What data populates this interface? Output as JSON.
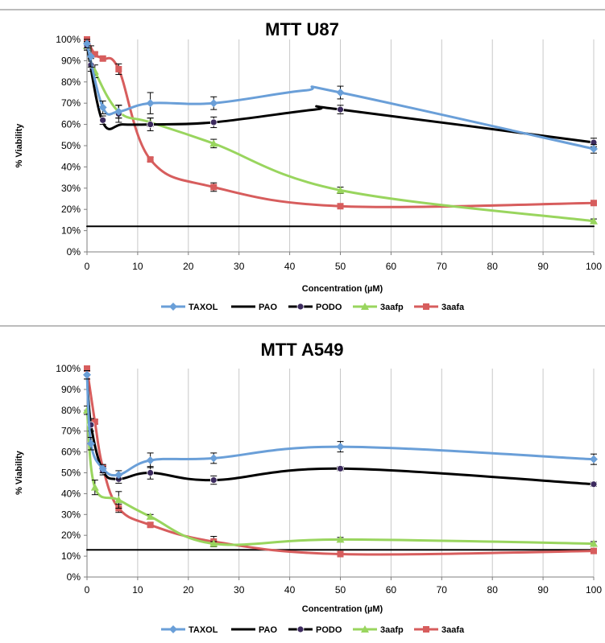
{
  "colors": {
    "taxol": "#6a9fd8",
    "pao": "#000000",
    "podo": "#000000",
    "podo_marker": "#3c2a5e",
    "aafp": "#99d55e",
    "aafa": "#d75d5d",
    "grid": "#c8c8c8",
    "axis": "#7f7f7f",
    "divider": "#a6a6a6"
  },
  "chart_data": [
    {
      "type": "line",
      "title": "MTT U87",
      "xlabel": "Concentration (µM)",
      "ylabel": "% Viability",
      "xlim": [
        0,
        100
      ],
      "ylim": [
        0,
        100
      ],
      "x_ticks": [
        "0",
        "10",
        "20",
        "30",
        "40",
        "50",
        "60",
        "70",
        "80",
        "90",
        "100"
      ],
      "y_ticks": [
        "0%",
        "10%",
        "20%",
        "30%",
        "40%",
        "50%",
        "60%",
        "70%",
        "80%",
        "90%",
        "100%"
      ],
      "grid": "vertical",
      "legend": "bottom",
      "series": [
        {
          "name": "TAXOL",
          "color_key": "taxol",
          "marker": "diamond",
          "points": [
            [
              0,
              98
            ],
            [
              0.78,
              92
            ],
            [
              3.125,
              68
            ],
            [
              6.25,
              66
            ],
            [
              12.5,
              70
            ],
            [
              25,
              70
            ],
            [
              50,
              75
            ],
            [
              100,
              48.5
            ]
          ],
          "errors": [
            2,
            5,
            3,
            3,
            5,
            3,
            3,
            2
          ],
          "curve": [
            [
              0,
              98
            ],
            [
              3.125,
              68
            ],
            [
              6.25,
              66
            ],
            [
              12.5,
              70
            ],
            [
              25,
              70
            ],
            [
              43,
              76
            ],
            [
              50,
              75
            ],
            [
              100,
              48.5
            ]
          ]
        },
        {
          "name": "PAO",
          "color_key": "pao",
          "marker": "none",
          "points": [
            [
              0,
              12
            ],
            [
              100,
              12
            ]
          ],
          "errors": [
            0,
            0
          ],
          "curve": [
            [
              0,
              12
            ],
            [
              100,
              12
            ]
          ]
        },
        {
          "name": "PODO",
          "color_key": "podo",
          "marker": "circle",
          "points": [
            [
              0,
              97
            ],
            [
              0.78,
              88
            ],
            [
              3.125,
              62
            ],
            [
              6.25,
              65
            ],
            [
              12.5,
              60
            ],
            [
              25,
              61
            ],
            [
              50,
              67
            ],
            [
              100,
              51.5
            ]
          ],
          "errors": [
            2,
            3,
            2,
            4,
            3,
            2.5,
            2,
            2
          ],
          "curve": [
            [
              0,
              97
            ],
            [
              3.125,
              61
            ],
            [
              7,
              60
            ],
            [
              12.5,
              60
            ],
            [
              25,
              61
            ],
            [
              45,
              67
            ],
            [
              50,
              67
            ],
            [
              100,
              51.5
            ]
          ]
        },
        {
          "name": "3aafp",
          "color_key": "aafp",
          "marker": "triangle",
          "points": [
            [
              0,
              97
            ],
            [
              1.56,
              85
            ],
            [
              6.25,
              66
            ],
            [
              12.5,
              61
            ],
            [
              25,
              51
            ],
            [
              50,
              29
            ],
            [
              100,
              14.5
            ]
          ],
          "errors": [
            2,
            3,
            3,
            2,
            2,
            1.5,
            1
          ],
          "curve": [
            [
              0,
              97
            ],
            [
              1.56,
              85
            ],
            [
              6.25,
              66
            ],
            [
              12.5,
              61
            ],
            [
              25,
              51
            ],
            [
              50,
              29
            ],
            [
              100,
              14.5
            ]
          ]
        },
        {
          "name": "3aafa",
          "color_key": "aafa",
          "marker": "square",
          "points": [
            [
              0,
              100
            ],
            [
              1.56,
              93
            ],
            [
              3.125,
              91
            ],
            [
              6.25,
              86
            ],
            [
              12.5,
              43.5
            ],
            [
              25,
              30.5
            ],
            [
              50,
              21.5
            ],
            [
              100,
              23
            ]
          ],
          "errors": [
            1,
            1,
            1,
            2.5,
            1,
            2,
            1,
            1
          ],
          "curve": [
            [
              0,
              100
            ],
            [
              1.56,
              93
            ],
            [
              3.125,
              91
            ],
            [
              6.25,
              86
            ],
            [
              12.5,
              43.5
            ],
            [
              25,
              30.5
            ],
            [
              50,
              21.5
            ],
            [
              100,
              23
            ]
          ]
        }
      ]
    },
    {
      "type": "line",
      "title": "MTT A549",
      "xlabel": "Concentration (µM)",
      "ylabel": "% Viability",
      "xlim": [
        0,
        100
      ],
      "ylim": [
        0,
        100
      ],
      "x_ticks": [
        "0",
        "10",
        "20",
        "30",
        "40",
        "50",
        "60",
        "70",
        "80",
        "90",
        "100"
      ],
      "y_ticks": [
        "0%",
        "10%",
        "20%",
        "30%",
        "40%",
        "50%",
        "60%",
        "70%",
        "80%",
        "90%",
        "100%"
      ],
      "grid": "vertical",
      "legend": "bottom",
      "series": [
        {
          "name": "TAXOL",
          "color_key": "taxol",
          "marker": "diamond",
          "points": [
            [
              0,
              97
            ],
            [
              0.78,
              64
            ],
            [
              3.125,
              52
            ],
            [
              6.25,
              49
            ],
            [
              12.5,
              56
            ],
            [
              25,
              57
            ],
            [
              50,
              62.5
            ],
            [
              100,
              56.5
            ]
          ],
          "errors": [
            2,
            3,
            2,
            2,
            3.5,
            2.5,
            2.5,
            2.5
          ],
          "curve": [
            [
              0,
              97
            ],
            [
              0.78,
              64
            ],
            [
              3.125,
              52
            ],
            [
              6.25,
              49
            ],
            [
              12.5,
              56
            ],
            [
              25,
              57
            ],
            [
              50,
              62.5
            ],
            [
              100,
              56.5
            ]
          ]
        },
        {
          "name": "PAO",
          "color_key": "pao",
          "marker": "none",
          "points": [
            [
              0,
              13
            ],
            [
              100,
              13
            ]
          ],
          "errors": [
            0,
            0
          ],
          "curve": [
            [
              0,
              13
            ],
            [
              100,
              13
            ]
          ]
        },
        {
          "name": "PODO",
          "color_key": "podo",
          "marker": "circle",
          "points": [
            [
              0,
              97
            ],
            [
              0.78,
              73
            ],
            [
              3.125,
              51
            ],
            [
              6.25,
              47
            ],
            [
              12.5,
              50
            ],
            [
              25,
              46.5
            ],
            [
              50,
              52
            ],
            [
              100,
              44.5
            ]
          ],
          "errors": [
            2,
            3,
            2,
            2,
            3,
            2,
            1,
            1
          ],
          "curve": [
            [
              0,
              97
            ],
            [
              0.78,
              73
            ],
            [
              3.125,
              51
            ],
            [
              6.25,
              47
            ],
            [
              12.5,
              50
            ],
            [
              25,
              46.5
            ],
            [
              50,
              52
            ],
            [
              100,
              44.5
            ]
          ]
        },
        {
          "name": "3aafp",
          "color_key": "aafp",
          "marker": "triangle",
          "points": [
            [
              0,
              80
            ],
            [
              1.56,
              43
            ],
            [
              6.25,
              37
            ],
            [
              12.5,
              29
            ],
            [
              25,
              16
            ],
            [
              50,
              18
            ],
            [
              100,
              16
            ]
          ],
          "errors": [
            2,
            3.5,
            4,
            1,
            1,
            1,
            1
          ],
          "curve": [
            [
              0,
              80
            ],
            [
              1.56,
              43
            ],
            [
              6.25,
              37
            ],
            [
              12.5,
              29
            ],
            [
              25,
              16
            ],
            [
              50,
              18
            ],
            [
              100,
              16
            ]
          ]
        },
        {
          "name": "3aafa",
          "color_key": "aafa",
          "marker": "square",
          "points": [
            [
              0,
              100
            ],
            [
              1.56,
              74.5
            ],
            [
              3.125,
              52.5
            ],
            [
              6.25,
              33
            ],
            [
              12.5,
              25
            ],
            [
              25,
              17
            ],
            [
              50,
              11
            ],
            [
              100,
              12.5
            ]
          ],
          "errors": [
            1,
            1,
            1,
            2,
            1,
            2.5,
            1,
            1
          ],
          "curve": [
            [
              0,
              100
            ],
            [
              1.56,
              74.5
            ],
            [
              3.125,
              52.5
            ],
            [
              6.25,
              33
            ],
            [
              12.5,
              25
            ],
            [
              25,
              17
            ],
            [
              50,
              11
            ],
            [
              100,
              12.5
            ]
          ]
        }
      ]
    }
  ]
}
